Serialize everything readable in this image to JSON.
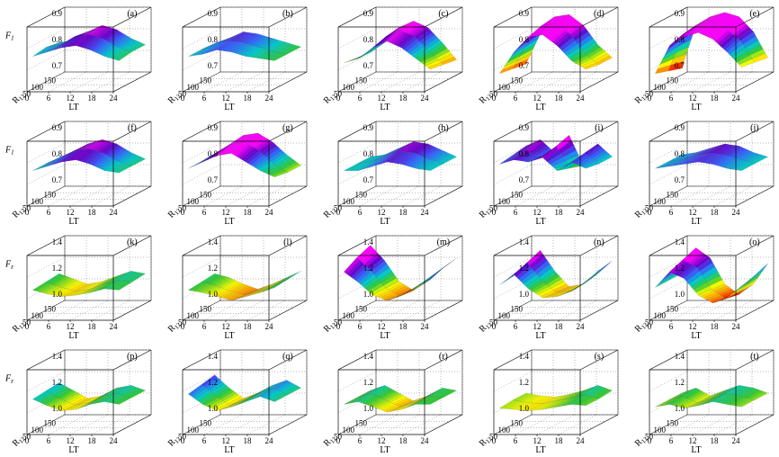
{
  "colors": {
    "colormap": [
      "#ff0000",
      "#ff9900",
      "#ffff00",
      "#33cc33",
      "#00cccc",
      "#3366ff",
      "#6600cc",
      "#ff00ff"
    ],
    "axis": "#000000",
    "grid": "#777777",
    "background": "#ffffff"
  },
  "chart_data": [
    {
      "type": "surface",
      "panel": "(a)",
      "zlabel": "F1",
      "zlabel_sub": "1",
      "xlabel": "LT",
      "ylabel": "R12",
      "ylabel_sub": "12",
      "xticks": [
        "0",
        "6",
        "12",
        "18",
        "24"
      ],
      "yticks": [
        "150",
        "100",
        "50"
      ],
      "zticks": [
        "0.9",
        "0.8",
        "0.7"
      ],
      "zlim": [
        0.65,
        0.95
      ],
      "z": [
        [
          0.8,
          0.81,
          0.85,
          0.88,
          0.86,
          0.82,
          0.79
        ],
        [
          0.81,
          0.82,
          0.86,
          0.87,
          0.85,
          0.81,
          0.79
        ],
        [
          0.8,
          0.82,
          0.84,
          0.85,
          0.83,
          0.8,
          0.78
        ]
      ]
    },
    {
      "type": "surface",
      "panel": "(b)",
      "zlabel": "",
      "xlabel": "LT",
      "ylabel": "R12",
      "ylabel_sub": "12",
      "xticks": [
        "0",
        "6",
        "12",
        "18",
        "24"
      ],
      "yticks": [
        "150",
        "100",
        "50"
      ],
      "zticks": [
        "0.9",
        "0.8",
        "0.7"
      ],
      "zlim": [
        0.65,
        0.95
      ],
      "z": [
        [
          0.79,
          0.82,
          0.85,
          0.84,
          0.82,
          0.8,
          0.78
        ],
        [
          0.8,
          0.83,
          0.84,
          0.83,
          0.81,
          0.79,
          0.78
        ],
        [
          0.8,
          0.81,
          0.83,
          0.82,
          0.8,
          0.79,
          0.78
        ]
      ]
    },
    {
      "type": "surface",
      "panel": "(c)",
      "zlabel": "",
      "xlabel": "LT",
      "ylabel": "R12",
      "ylabel_sub": "12",
      "xticks": [
        "0",
        "6",
        "12",
        "18",
        "24"
      ],
      "yticks": [
        "150",
        "100",
        "50"
      ],
      "zticks": [
        "0.9",
        "0.8",
        "0.7"
      ],
      "zlim": [
        0.65,
        0.95
      ],
      "z": [
        [
          0.76,
          0.8,
          0.87,
          0.9,
          0.87,
          0.8,
          0.72
        ],
        [
          0.76,
          0.79,
          0.86,
          0.89,
          0.86,
          0.79,
          0.73
        ],
        [
          0.77,
          0.79,
          0.84,
          0.87,
          0.84,
          0.79,
          0.74
        ]
      ]
    },
    {
      "type": "surface",
      "panel": "(d)",
      "zlabel": "",
      "xlabel": "LT",
      "ylabel": "R12",
      "ylabel_sub": "12",
      "xticks": [
        "0",
        "6",
        "12",
        "18",
        "24"
      ],
      "yticks": [
        "150",
        "100",
        "50"
      ],
      "zticks": [
        "0.9",
        "0.8",
        "0.7"
      ],
      "zlim": [
        0.65,
        0.95
      ],
      "z": [
        [
          0.7,
          0.84,
          0.92,
          0.93,
          0.88,
          0.79,
          0.73
        ],
        [
          0.71,
          0.83,
          0.91,
          0.92,
          0.87,
          0.78,
          0.73
        ],
        [
          0.72,
          0.82,
          0.89,
          0.9,
          0.85,
          0.78,
          0.74
        ]
      ]
    },
    {
      "type": "surface",
      "panel": "(e)",
      "zlabel": "",
      "xlabel": "LT",
      "ylabel": "R12",
      "ylabel_sub": "12",
      "xticks": [
        "0",
        "6",
        "12",
        "18",
        "24"
      ],
      "yticks": [
        "150",
        "100",
        "50"
      ],
      "zticks": [
        "0.9",
        "0.8",
        "0.7"
      ],
      "zlim": [
        0.65,
        0.95
      ],
      "z": [
        [
          0.68,
          0.88,
          0.92,
          0.94,
          0.92,
          0.85,
          0.73
        ],
        [
          0.7,
          0.87,
          0.91,
          0.93,
          0.9,
          0.84,
          0.74
        ],
        [
          0.72,
          0.85,
          0.89,
          0.91,
          0.88,
          0.82,
          0.75
        ]
      ]
    },
    {
      "type": "surface",
      "panel": "(f)",
      "zlabel": "F1",
      "zlabel_sub": "1",
      "xlabel": "LT",
      "ylabel": "R12",
      "ylabel_sub": "12",
      "xticks": [
        "0",
        "6",
        "12",
        "18",
        "24"
      ],
      "yticks": [
        "150",
        "100",
        "50"
      ],
      "zticks": [
        "0.9",
        "0.8",
        "0.7"
      ],
      "zlim": [
        0.65,
        0.95
      ],
      "z": [
        [
          0.79,
          0.82,
          0.86,
          0.88,
          0.86,
          0.82,
          0.79
        ],
        [
          0.8,
          0.83,
          0.86,
          0.87,
          0.85,
          0.81,
          0.79
        ],
        [
          0.8,
          0.82,
          0.84,
          0.85,
          0.83,
          0.8,
          0.79
        ]
      ]
    },
    {
      "type": "surface",
      "panel": "(g)",
      "zlabel": "",
      "xlabel": "LT",
      "ylabel": "R12",
      "ylabel_sub": "12",
      "xticks": [
        "0",
        "6",
        "12",
        "18",
        "24"
      ],
      "yticks": [
        "150",
        "100",
        "50"
      ],
      "zticks": [
        "0.9",
        "0.8",
        "0.7"
      ],
      "zlim": [
        0.65,
        0.95
      ],
      "z": [
        [
          0.8,
          0.85,
          0.9,
          0.91,
          0.87,
          0.81,
          0.76
        ],
        [
          0.81,
          0.85,
          0.89,
          0.9,
          0.86,
          0.8,
          0.76
        ],
        [
          0.81,
          0.84,
          0.87,
          0.88,
          0.84,
          0.8,
          0.77
        ]
      ]
    },
    {
      "type": "surface",
      "panel": "(h)",
      "zlabel": "",
      "xlabel": "LT",
      "ylabel": "R12",
      "ylabel_sub": "12",
      "xticks": [
        "0",
        "6",
        "12",
        "18",
        "24"
      ],
      "yticks": [
        "150",
        "100",
        "50"
      ],
      "zticks": [
        "0.9",
        "0.8",
        "0.7"
      ],
      "zlim": [
        0.65,
        0.95
      ],
      "z": [
        [
          0.8,
          0.81,
          0.84,
          0.87,
          0.86,
          0.83,
          0.8
        ],
        [
          0.8,
          0.81,
          0.83,
          0.86,
          0.85,
          0.82,
          0.8
        ],
        [
          0.8,
          0.8,
          0.82,
          0.84,
          0.83,
          0.81,
          0.8
        ]
      ]
    },
    {
      "type": "surface",
      "panel": "(i)",
      "zlabel": "",
      "xlabel": "LT",
      "ylabel": "R12",
      "ylabel_sub": "12",
      "xticks": [
        "0",
        "6",
        "12",
        "18",
        "24"
      ],
      "yticks": [
        "150",
        "100",
        "50"
      ],
      "zticks": [
        "0.9",
        "0.8",
        "0.7"
      ],
      "zlim": [
        0.65,
        0.95
      ],
      "z": [
        [
          0.85,
          0.88,
          0.82,
          0.9,
          0.76,
          0.86,
          0.8
        ],
        [
          0.84,
          0.86,
          0.83,
          0.88,
          0.78,
          0.85,
          0.8
        ],
        [
          0.83,
          0.85,
          0.84,
          0.86,
          0.8,
          0.84,
          0.81
        ]
      ]
    },
    {
      "type": "surface",
      "panel": "(j)",
      "zlabel": "",
      "xlabel": "LT",
      "ylabel": "R12",
      "ylabel_sub": "12",
      "xticks": [
        "0",
        "6",
        "12",
        "18",
        "24"
      ],
      "yticks": [
        "150",
        "100",
        "50"
      ],
      "zticks": [
        "0.9",
        "0.8",
        "0.7"
      ],
      "zlim": [
        0.65,
        0.95
      ],
      "z": [
        [
          0.81,
          0.82,
          0.84,
          0.86,
          0.85,
          0.82,
          0.8
        ],
        [
          0.81,
          0.82,
          0.84,
          0.85,
          0.84,
          0.82,
          0.8
        ],
        [
          0.81,
          0.82,
          0.83,
          0.84,
          0.83,
          0.81,
          0.8
        ]
      ]
    },
    {
      "type": "surface",
      "panel": "(k)",
      "zlabel": "Fz",
      "zlabel_sub": "z",
      "xlabel": "LT",
      "ylabel": "R12",
      "ylabel_sub": "12",
      "xticks": [
        "0",
        "6",
        "12",
        "18",
        "24"
      ],
      "yticks": [
        "150",
        "100",
        "50"
      ],
      "zticks": [
        "1.4",
        "1.2",
        "1.0"
      ],
      "zlim": [
        0.95,
        1.45
      ],
      "z": [
        [
          1.18,
          1.14,
          1.1,
          1.12,
          1.16,
          1.2,
          1.18
        ],
        [
          1.17,
          1.13,
          1.1,
          1.11,
          1.15,
          1.18,
          1.17
        ],
        [
          1.16,
          1.13,
          1.11,
          1.12,
          1.14,
          1.17,
          1.16
        ]
      ]
    },
    {
      "type": "surface",
      "panel": "(l)",
      "zlabel": "",
      "xlabel": "LT",
      "ylabel": "R12",
      "ylabel_sub": "12",
      "xticks": [
        "0",
        "6",
        "12",
        "18",
        "24"
      ],
      "yticks": [
        "150",
        "100",
        "50"
      ],
      "zticks": [
        "1.4",
        "1.2",
        "1.0"
      ],
      "zlim": [
        0.95,
        1.45
      ],
      "z": [
        [
          1.18,
          1.15,
          1.1,
          1.06,
          1.1,
          1.15,
          1.2
        ],
        [
          1.17,
          1.14,
          1.1,
          1.07,
          1.1,
          1.14,
          1.19
        ],
        [
          1.16,
          1.14,
          1.11,
          1.08,
          1.11,
          1.14,
          1.18
        ]
      ]
    },
    {
      "type": "surface",
      "panel": "(m)",
      "zlabel": "",
      "xlabel": "LT",
      "ylabel": "R12",
      "ylabel_sub": "12",
      "xticks": [
        "0",
        "6",
        "12",
        "18",
        "24"
      ],
      "yticks": [
        "150",
        "100",
        "50"
      ],
      "zticks": [
        "1.4",
        "1.2",
        "1.0"
      ],
      "zlim": [
        0.95,
        1.45
      ],
      "z": [
        [
          1.4,
          1.28,
          1.12,
          1.05,
          1.12,
          1.22,
          1.3
        ],
        [
          1.36,
          1.25,
          1.12,
          1.06,
          1.12,
          1.2,
          1.28
        ],
        [
          1.3,
          1.22,
          1.12,
          1.08,
          1.12,
          1.18,
          1.24
        ]
      ]
    },
    {
      "type": "surface",
      "panel": "(n)",
      "zlabel": "",
      "xlabel": "LT",
      "ylabel": "R12",
      "ylabel_sub": "12",
      "xticks": [
        "0",
        "6",
        "12",
        "18",
        "24"
      ],
      "yticks": [
        "150",
        "100",
        "50"
      ],
      "zticks": [
        "1.4",
        "1.2",
        "1.0"
      ],
      "zlim": [
        0.95,
        1.45
      ],
      "z": [
        [
          1.22,
          1.36,
          1.2,
          1.08,
          1.1,
          1.18,
          1.28
        ],
        [
          1.21,
          1.32,
          1.18,
          1.09,
          1.1,
          1.16,
          1.26
        ],
        [
          1.2,
          1.28,
          1.17,
          1.1,
          1.11,
          1.15,
          1.22
        ]
      ]
    },
    {
      "type": "surface",
      "panel": "(o)",
      "zlabel": "",
      "xlabel": "LT",
      "ylabel": "R12",
      "ylabel_sub": "12",
      "xticks": [
        "0",
        "6",
        "12",
        "18",
        "24"
      ],
      "yticks": [
        "150",
        "100",
        "50"
      ],
      "zticks": [
        "1.4",
        "1.2",
        "1.0"
      ],
      "zlim": [
        0.95,
        1.45
      ],
      "z": [
        [
          1.18,
          1.38,
          1.3,
          1.1,
          1.02,
          1.1,
          1.26
        ],
        [
          1.18,
          1.34,
          1.28,
          1.11,
          1.04,
          1.1,
          1.22
        ],
        [
          1.18,
          1.3,
          1.25,
          1.12,
          1.06,
          1.1,
          1.19
        ]
      ]
    },
    {
      "type": "surface",
      "panel": "(p)",
      "zlabel": "Fz",
      "zlabel_sub": "z",
      "xlabel": "LT",
      "ylabel": "R12",
      "ylabel_sub": "12",
      "xticks": [
        "0",
        "6",
        "12",
        "18",
        "24"
      ],
      "yticks": [
        "150",
        "100",
        "50"
      ],
      "zticks": [
        "1.4",
        "1.2",
        "1.0"
      ],
      "zlim": [
        0.95,
        1.45
      ],
      "z": [
        [
          1.22,
          1.16,
          1.1,
          1.12,
          1.18,
          1.2,
          1.16
        ],
        [
          1.21,
          1.15,
          1.1,
          1.12,
          1.17,
          1.19,
          1.16
        ],
        [
          1.2,
          1.15,
          1.11,
          1.12,
          1.16,
          1.18,
          1.16
        ]
      ]
    },
    {
      "type": "surface",
      "panel": "(q)",
      "zlabel": "",
      "xlabel": "LT",
      "ylabel": "R12",
      "ylabel_sub": "12",
      "xticks": [
        "0",
        "6",
        "12",
        "18",
        "24"
      ],
      "yticks": [
        "150",
        "100",
        "50"
      ],
      "zticks": [
        "1.4",
        "1.2",
        "1.0"
      ],
      "zlim": [
        0.95,
        1.45
      ],
      "z": [
        [
          1.28,
          1.18,
          1.1,
          1.14,
          1.2,
          1.24,
          1.18
        ],
        [
          1.26,
          1.17,
          1.1,
          1.14,
          1.19,
          1.23,
          1.18
        ],
        [
          1.24,
          1.16,
          1.11,
          1.14,
          1.18,
          1.22,
          1.18
        ]
      ]
    },
    {
      "type": "surface",
      "panel": "(r)",
      "zlabel": "",
      "xlabel": "LT",
      "ylabel": "R12",
      "ylabel_sub": "12",
      "xticks": [
        "0",
        "6",
        "12",
        "18",
        "24"
      ],
      "yticks": [
        "150",
        "100",
        "50"
      ],
      "zticks": [
        "1.4",
        "1.2",
        "1.0"
      ],
      "zlim": [
        0.95,
        1.45
      ],
      "z": [
        [
          1.16,
          1.2,
          1.14,
          1.08,
          1.12,
          1.18,
          1.16
        ],
        [
          1.16,
          1.19,
          1.14,
          1.09,
          1.12,
          1.17,
          1.16
        ],
        [
          1.16,
          1.18,
          1.14,
          1.1,
          1.12,
          1.16,
          1.16
        ]
      ]
    },
    {
      "type": "surface",
      "panel": "(s)",
      "zlabel": "",
      "xlabel": "LT",
      "ylabel": "R12",
      "ylabel_sub": "12",
      "xticks": [
        "0",
        "6",
        "12",
        "18",
        "24"
      ],
      "yticks": [
        "150",
        "100",
        "50"
      ],
      "zticks": [
        "1.4",
        "1.2",
        "1.0"
      ],
      "zlim": [
        0.95,
        1.45
      ],
      "z": [
        [
          1.14,
          1.12,
          1.11,
          1.13,
          1.16,
          1.2,
          1.16
        ],
        [
          1.14,
          1.12,
          1.11,
          1.13,
          1.15,
          1.18,
          1.15
        ],
        [
          1.13,
          1.12,
          1.11,
          1.12,
          1.14,
          1.16,
          1.15
        ]
      ]
    },
    {
      "type": "surface",
      "panel": "(t)",
      "zlabel": "",
      "xlabel": "LT",
      "ylabel": "R12",
      "ylabel_sub": "12",
      "xticks": [
        "0",
        "6",
        "12",
        "18",
        "24"
      ],
      "yticks": [
        "150",
        "100",
        "50"
      ],
      "zticks": [
        "1.4",
        "1.2",
        "1.0"
      ],
      "zlim": [
        0.95,
        1.45
      ],
      "z": [
        [
          1.14,
          1.18,
          1.12,
          1.16,
          1.2,
          1.18,
          1.14
        ],
        [
          1.14,
          1.17,
          1.12,
          1.15,
          1.19,
          1.17,
          1.14
        ],
        [
          1.14,
          1.16,
          1.13,
          1.15,
          1.18,
          1.16,
          1.14
        ]
      ]
    }
  ]
}
